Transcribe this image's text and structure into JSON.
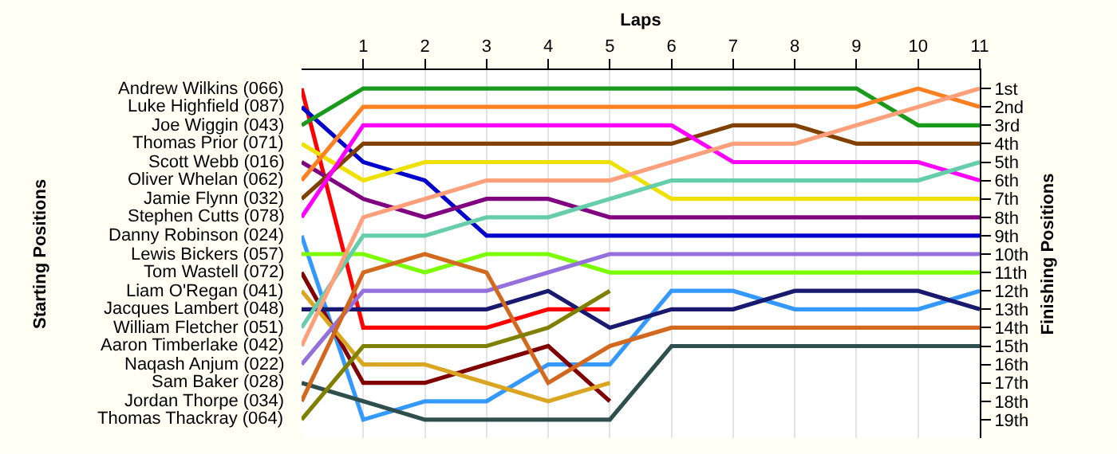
{
  "chart_data": {
    "type": "line",
    "xlabel": "Laps",
    "annotations": [
      "Starting Positions"
    ],
    "y2label": "Finishing Positions",
    "x": [
      0,
      1,
      2,
      3,
      4,
      5,
      6,
      7,
      8,
      9,
      10,
      11
    ],
    "xlim": [
      0,
      11
    ],
    "xticks": [
      1,
      2,
      3,
      4,
      5,
      6,
      7,
      8,
      9,
      10,
      11
    ],
    "y2lim": [
      20,
      0
    ],
    "y2ticks": [
      {
        "value": 1,
        "label": "1st"
      },
      {
        "value": 2,
        "label": "2nd"
      },
      {
        "value": 3,
        "label": "3rd"
      },
      {
        "value": 4,
        "label": "4th"
      },
      {
        "value": 5,
        "label": "5th"
      },
      {
        "value": 6,
        "label": "6th"
      },
      {
        "value": 7,
        "label": "7th"
      },
      {
        "value": 8,
        "label": "8th"
      },
      {
        "value": 9,
        "label": "9th"
      },
      {
        "value": 10,
        "label": "10th"
      },
      {
        "value": 11,
        "label": "11th"
      },
      {
        "value": 12,
        "label": "12th"
      },
      {
        "value": 13,
        "label": "13th"
      },
      {
        "value": 14,
        "label": "14th"
      },
      {
        "value": 15,
        "label": "15th"
      },
      {
        "value": 16,
        "label": "16th"
      },
      {
        "value": 17,
        "label": "17th"
      },
      {
        "value": 18,
        "label": "18th"
      },
      {
        "value": 19,
        "label": "19th"
      }
    ],
    "grid": true,
    "marker": "none",
    "line_style": "solid",
    "series": [
      {
        "name": "Andrew Wilkins (066)",
        "axis": "y2",
        "color": "#ff0000",
        "values": [
          1,
          14,
          14,
          14,
          13,
          13,
          null,
          null,
          null,
          null,
          null,
          null
        ]
      },
      {
        "name": "Luke Highfield (087)",
        "axis": "y2",
        "color": "#0000cd",
        "values": [
          2,
          5,
          6,
          9,
          9,
          9,
          9,
          9,
          9,
          9,
          9,
          9
        ]
      },
      {
        "name": "Joe Wiggin (043)",
        "axis": "y2",
        "color": "#1a9a1a",
        "values": [
          3,
          1,
          1,
          1,
          1,
          1,
          1,
          1,
          1,
          1,
          3,
          3
        ]
      },
      {
        "name": "Thomas Prior (071)",
        "axis": "y2",
        "color": "#f0e000",
        "values": [
          4,
          6,
          5,
          5,
          5,
          5,
          7,
          7,
          7,
          7,
          7,
          7
        ]
      },
      {
        "name": "Scott Webb (016)",
        "axis": "y2",
        "color": "#800080",
        "values": [
          5,
          7,
          8,
          7,
          7,
          8,
          8,
          8,
          8,
          8,
          8,
          8
        ]
      },
      {
        "name": "Oliver Whelan (062)",
        "axis": "y2",
        "color": "#ff8020",
        "values": [
          6,
          2,
          2,
          2,
          2,
          2,
          2,
          2,
          2,
          2,
          1,
          2
        ]
      },
      {
        "name": "Jamie Flynn (032)",
        "axis": "y2",
        "color": "#804000",
        "values": [
          7,
          4,
          4,
          4,
          4,
          4,
          4,
          3,
          3,
          4,
          4,
          4
        ]
      },
      {
        "name": "Stephen Cutts (078)",
        "axis": "y2",
        "color": "#ff00ff",
        "values": [
          8,
          3,
          3,
          3,
          3,
          3,
          3,
          5,
          5,
          5,
          5,
          6
        ]
      },
      {
        "name": "Danny Robinson (024)",
        "axis": "y2",
        "color": "#3399ff",
        "values": [
          9,
          19,
          18,
          18,
          16,
          16,
          12,
          12,
          13,
          13,
          13,
          12
        ]
      },
      {
        "name": "Lewis Bickers (057)",
        "axis": "y2",
        "color": "#7cfc00",
        "values": [
          10,
          10,
          11,
          10,
          10,
          11,
          11,
          11,
          11,
          11,
          11,
          11
        ]
      },
      {
        "name": "Tom Wastell (072)",
        "axis": "y2",
        "color": "#800000",
        "values": [
          11,
          17,
          17,
          16,
          15,
          18,
          null,
          null,
          null,
          null,
          null,
          null
        ]
      },
      {
        "name": "Liam O'Regan (041)",
        "axis": "y2",
        "color": "#daa520",
        "values": [
          12,
          16,
          16,
          17,
          18,
          17,
          null,
          null,
          null,
          null,
          null,
          null
        ]
      },
      {
        "name": "Jacques Lambert (048)",
        "axis": "y2",
        "color": "#191970",
        "values": [
          13,
          13,
          13,
          13,
          12,
          14,
          13,
          13,
          12,
          12,
          12,
          13
        ]
      },
      {
        "name": "William Fletcher (051)",
        "axis": "y2",
        "color": "#66cdaa",
        "values": [
          14,
          9,
          9,
          8,
          8,
          7,
          6,
          6,
          6,
          6,
          6,
          5
        ]
      },
      {
        "name": "Aaron Timberlake (042)",
        "axis": "y2",
        "color": "#ffa07a",
        "values": [
          15,
          8,
          7,
          6,
          6,
          6,
          5,
          4,
          4,
          3,
          2,
          1
        ]
      },
      {
        "name": "Naqash Anjum (022)",
        "axis": "y2",
        "color": "#9370db",
        "values": [
          16,
          12,
          12,
          12,
          11,
          10,
          10,
          10,
          10,
          10,
          10,
          10
        ]
      },
      {
        "name": "Sam Baker (028)",
        "axis": "y2",
        "color": "#2f4f4f",
        "values": [
          17,
          18,
          19,
          19,
          19,
          19,
          15,
          15,
          15,
          15,
          15,
          15
        ]
      },
      {
        "name": "Jordan Thorpe (034)",
        "axis": "y2",
        "color": "#d2691e",
        "values": [
          18,
          11,
          10,
          11,
          17,
          15,
          14,
          14,
          14,
          14,
          14,
          14
        ]
      },
      {
        "name": "Thomas Thackray (064)",
        "axis": "y2",
        "color": "#808000",
        "values": [
          19,
          15,
          15,
          15,
          14,
          12,
          null,
          null,
          null,
          null,
          null,
          null
        ]
      }
    ]
  }
}
